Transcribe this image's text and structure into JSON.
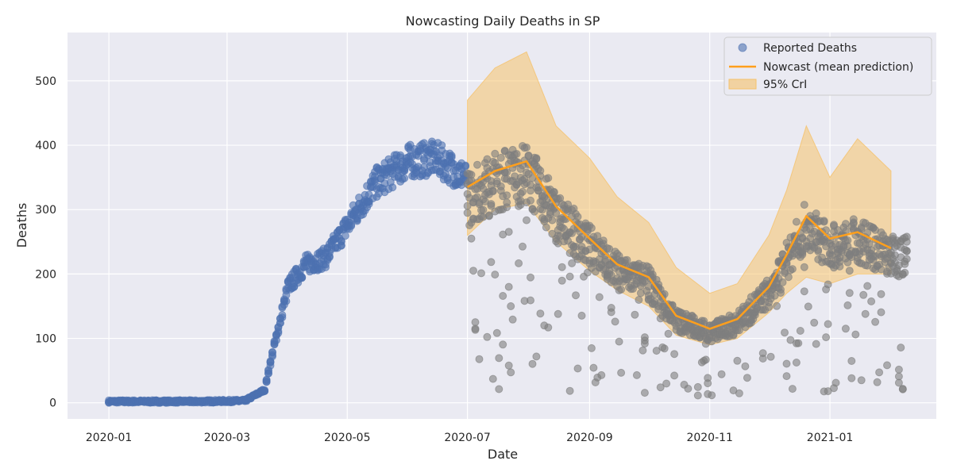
{
  "chart_data": {
    "type": "scatter",
    "title": "Nowcasting Daily Deaths in SP",
    "xlabel": "Date",
    "ylabel": "Deaths",
    "xlim": [
      "2019-12-11",
      "2021-02-24"
    ],
    "ylim": [
      -25,
      575
    ],
    "x_ticks": [
      "2020-01",
      "2020-03",
      "2020-05",
      "2020-07",
      "2020-09",
      "2020-11",
      "2021-01"
    ],
    "y_ticks": [
      0,
      100,
      200,
      300,
      400,
      500
    ],
    "grid": true,
    "legend_position": "top-right",
    "colors": {
      "background": "#eaeaf2",
      "grid": "#ffffff",
      "reported": "#4c72b0",
      "reported_late": "#7f7f7f",
      "nowcast": "#ff9f1c",
      "band": "#f5c26b"
    },
    "legend": [
      {
        "label": "Reported Deaths",
        "kind": "marker"
      },
      {
        "label": "Nowcast (mean prediction)",
        "kind": "line"
      },
      {
        "label": "95% CrI",
        "kind": "patch"
      }
    ],
    "reported_deaths_trend": {
      "x": [
        "2020-01-01",
        "2020-02-15",
        "2020-03-10",
        "2020-03-20",
        "2020-03-25",
        "2020-04-01",
        "2020-04-10",
        "2020-04-20",
        "2020-05-01",
        "2020-05-15",
        "2020-06-01",
        "2020-06-15",
        "2020-06-30"
      ],
      "y": [
        2,
        2,
        3,
        20,
        90,
        180,
        215,
        225,
        275,
        340,
        375,
        380,
        350
      ]
    },
    "nowcast": {
      "x": [
        "2020-07-01",
        "2020-07-15",
        "2020-07-31",
        "2020-08-15",
        "2020-09-01",
        "2020-09-15",
        "2020-10-01",
        "2020-10-15",
        "2020-11-01",
        "2020-11-15",
        "2020-12-01",
        "2020-12-10",
        "2020-12-20",
        "2021-01-01",
        "2021-01-15",
        "2021-02-01"
      ],
      "y": [
        335,
        360,
        375,
        305,
        255,
        215,
        195,
        135,
        115,
        130,
        180,
        230,
        290,
        255,
        265,
        240
      ]
    },
    "credible_interval": {
      "x": [
        "2020-07-01",
        "2020-07-15",
        "2020-07-31",
        "2020-08-15",
        "2020-09-01",
        "2020-09-15",
        "2020-10-01",
        "2020-10-15",
        "2020-11-01",
        "2020-11-15",
        "2020-12-01",
        "2020-12-10",
        "2020-12-20",
        "2021-01-01",
        "2021-01-15",
        "2021-02-01"
      ],
      "lower": [
        260,
        300,
        310,
        250,
        205,
        175,
        150,
        105,
        90,
        100,
        140,
        170,
        195,
        185,
        200,
        200
      ],
      "upper": [
        470,
        520,
        545,
        430,
        380,
        320,
        280,
        210,
        170,
        185,
        260,
        330,
        430,
        350,
        410,
        360
      ]
    }
  }
}
